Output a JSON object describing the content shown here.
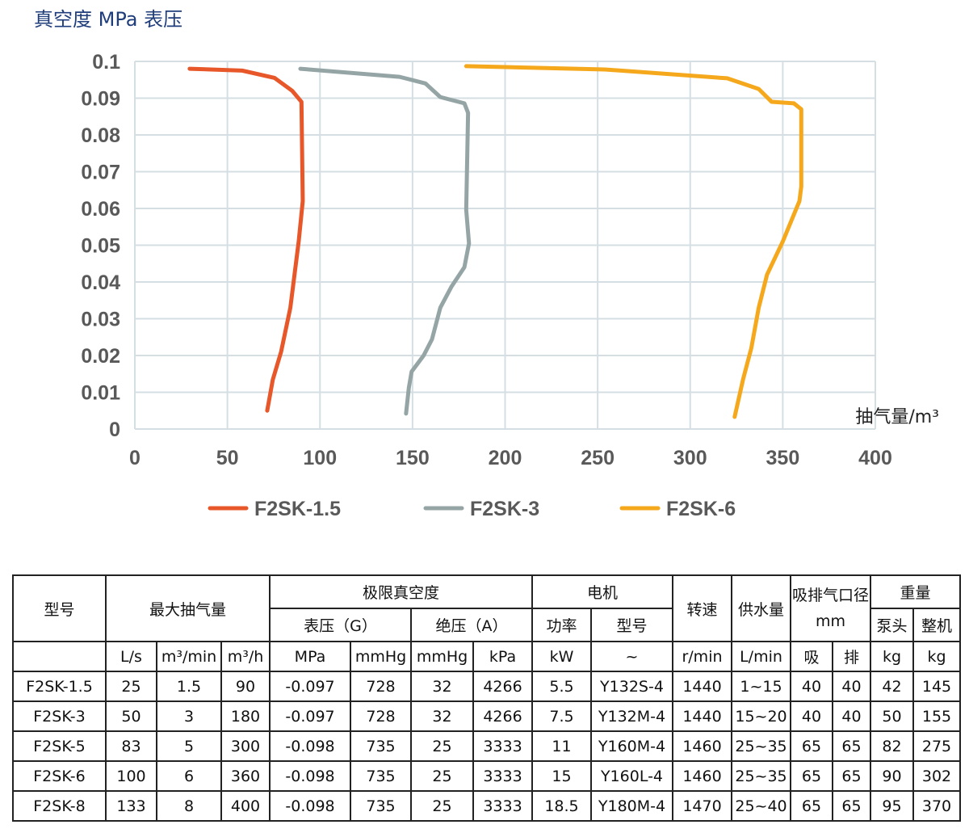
{
  "chart_data": {
    "type": "line",
    "title": "真空度 MPa 表压",
    "xlabel": "抽气量/m³",
    "xlim": [
      0,
      400
    ],
    "ylim": [
      0,
      0.1
    ],
    "xticks": [
      "0",
      "50",
      "100",
      "150",
      "200",
      "250",
      "300",
      "350",
      "400"
    ],
    "yticks": [
      "0",
      "0.01",
      "0.02",
      "0.03",
      "0.04",
      "0.05",
      "0.06",
      "0.07",
      "0.08",
      "0.09",
      "0.1"
    ],
    "grid": true,
    "legend": "bottom",
    "series": [
      {
        "name": "F2SK-1.5",
        "color": "#e8572a",
        "points": [
          [
            29.6,
            0.098
          ],
          [
            58,
            0.0975
          ],
          [
            75.5,
            0.0955
          ],
          [
            85,
            0.092
          ],
          [
            90,
            0.089
          ],
          [
            90.7,
            0.062
          ],
          [
            88.5,
            0.051
          ],
          [
            84,
            0.033
          ],
          [
            79,
            0.021
          ],
          [
            74.5,
            0.0134
          ],
          [
            71.5,
            0.005
          ]
        ]
      },
      {
        "name": "F2SK-3",
        "color": "#95a5a6",
        "points": [
          [
            89.4,
            0.098
          ],
          [
            143,
            0.0958
          ],
          [
            157,
            0.094
          ],
          [
            165,
            0.0903
          ],
          [
            178,
            0.0886
          ],
          [
            180,
            0.086
          ],
          [
            179,
            0.0596
          ],
          [
            180.5,
            0.0505
          ],
          [
            178,
            0.044
          ],
          [
            171,
            0.0387
          ],
          [
            165,
            0.033
          ],
          [
            160.5,
            0.0244
          ],
          [
            156,
            0.02
          ],
          [
            149.5,
            0.0156
          ],
          [
            148,
            0.0112
          ],
          [
            146.5,
            0.0042
          ]
        ]
      },
      {
        "name": "F2SK-6",
        "color": "#f5a81c",
        "points": [
          [
            179,
            0.0987
          ],
          [
            254,
            0.0978
          ],
          [
            320,
            0.0954
          ],
          [
            337,
            0.0925
          ],
          [
            344,
            0.089
          ],
          [
            356,
            0.0886
          ],
          [
            360,
            0.087
          ],
          [
            360,
            0.066
          ],
          [
            359,
            0.062
          ],
          [
            350,
            0.051
          ],
          [
            341.5,
            0.042
          ],
          [
            337,
            0.033
          ],
          [
            333,
            0.022
          ],
          [
            328.5,
            0.0134
          ],
          [
            324,
            0.0033
          ]
        ]
      }
    ]
  },
  "table": {
    "h_model": "型号",
    "h_flow": "最大抽气量",
    "h_vac": "极限真空度",
    "h_motor": "电机",
    "h_speed": "转速",
    "h_water": "供水量",
    "h_port": "吸排气口径mm",
    "h_weight": "重量",
    "h_gauge": "表压（G）",
    "h_abs": "绝压（A）",
    "h_power": "功率",
    "h_mtype": "型号",
    "h_head": "泵头",
    "h_whole": "整机",
    "units": [
      "L/s",
      "m³/min",
      "m³/h",
      "MPa",
      "mmHg",
      "mmHg",
      "kPa",
      "kW",
      "~",
      "r/min",
      "L/min",
      "吸",
      "排",
      "kg",
      "kg"
    ],
    "rows": [
      [
        "F2SK-1.5",
        "25",
        "1.5",
        "90",
        "-0.097",
        "728",
        "32",
        "4266",
        "5.5",
        "Y132S-4",
        "1440",
        "1~15",
        "40",
        "40",
        "42",
        "145"
      ],
      [
        "F2SK-3",
        "50",
        "3",
        "180",
        "-0.097",
        "728",
        "32",
        "4266",
        "7.5",
        "Y132M-4",
        "1440",
        "15~20",
        "40",
        "40",
        "50",
        "155"
      ],
      [
        "F2SK-5",
        "83",
        "5",
        "300",
        "-0.098",
        "735",
        "25",
        "3333",
        "11",
        "Y160M-4",
        "1460",
        "25~35",
        "65",
        "65",
        "82",
        "275"
      ],
      [
        "F2SK-6",
        "100",
        "6",
        "360",
        "-0.098",
        "735",
        "25",
        "3333",
        "15",
        "Y160L-4",
        "1460",
        "25~35",
        "65",
        "65",
        "90",
        "302"
      ],
      [
        "F2SK-8",
        "133",
        "8",
        "400",
        "-0.098",
        "735",
        "25",
        "3333",
        "18.5",
        "Y180M-4",
        "1470",
        "25~40",
        "65",
        "65",
        "95",
        "370"
      ]
    ]
  }
}
